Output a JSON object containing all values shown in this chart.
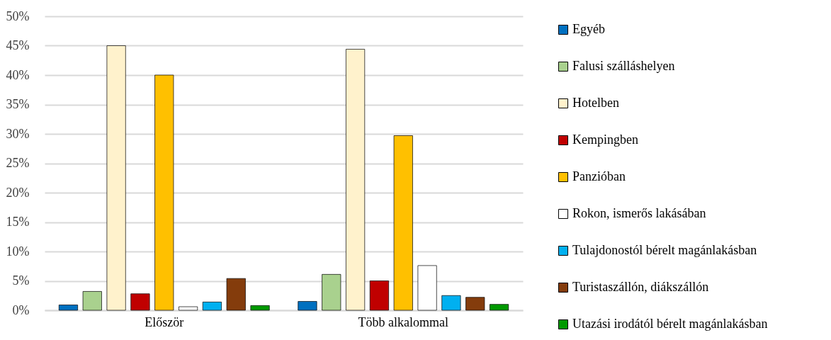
{
  "chart_data": {
    "type": "bar",
    "categories": [
      "Először",
      "Több alkalommal"
    ],
    "series": [
      {
        "name": "Egyéb",
        "color": "#0070c0",
        "values": [
          0.9,
          1.5
        ]
      },
      {
        "name": "Falusi szálláshelyen",
        "color": "#a9d18e",
        "values": [
          3.2,
          6.1
        ]
      },
      {
        "name": "Hotelben",
        "color": "#fff2cc",
        "values": [
          45.0,
          44.4
        ]
      },
      {
        "name": "Kempingben",
        "color": "#c00000",
        "values": [
          2.8,
          5.0
        ]
      },
      {
        "name": "Panzióban",
        "color": "#ffc000",
        "values": [
          40.0,
          29.7
        ]
      },
      {
        "name": "Rokon, ismerős lakásában",
        "color": "#ffffff",
        "values": [
          0.6,
          7.6
        ]
      },
      {
        "name": "Tulajdonostól bérelt magánlakásban",
        "color": "#00b0f0",
        "values": [
          1.4,
          2.5
        ]
      },
      {
        "name": "Turistaszállón, diákszállón",
        "color": "#843c0c",
        "values": [
          5.4,
          2.2
        ]
      },
      {
        "name": "Utazási irodától bérelt magánlakásban",
        "color": "#009900",
        "values": [
          0.8,
          1.0
        ]
      }
    ],
    "ylim": [
      0,
      50
    ],
    "yticks": [
      {
        "value": 0,
        "label": "0%"
      },
      {
        "value": 5,
        "label": "5%"
      },
      {
        "value": 10,
        "label": "10%"
      },
      {
        "value": 15,
        "label": "15%"
      },
      {
        "value": 20,
        "label": "20%"
      },
      {
        "value": 25,
        "label": "25%"
      },
      {
        "value": 30,
        "label": "30%"
      },
      {
        "value": 35,
        "label": "35%"
      },
      {
        "value": 40,
        "label": "40%"
      },
      {
        "value": 45,
        "label": "45%"
      },
      {
        "value": 50,
        "label": "50%"
      }
    ],
    "grid": "y",
    "legend": "right"
  }
}
